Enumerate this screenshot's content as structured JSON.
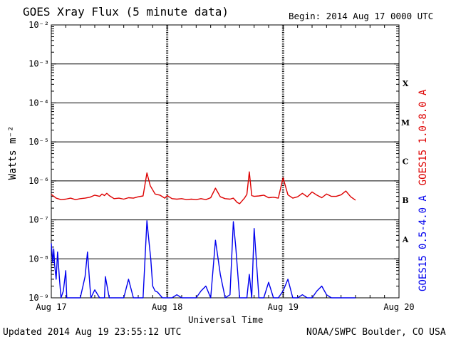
{
  "header": {
    "title": "GOES Xray Flux (5 minute data)",
    "begin": "Begin:  2014 Aug 17 0000 UTC"
  },
  "footer": {
    "updated": "Updated 2014 Aug 19 23:55:12 UTC",
    "credit": "NOAA/SWPC Boulder, CO USA"
  },
  "colors": {
    "long": "#dd0000",
    "short": "#0000ee",
    "axis": "#000000"
  },
  "chart_data": {
    "type": "line",
    "title": "GOES Xray Flux (5 minute data)",
    "xlabel": "Universal Time",
    "ylabel": "Watts m⁻²",
    "ylog": true,
    "ylim": [
      1e-09,
      0.01
    ],
    "yticks": [
      "10⁻²",
      "10⁻³",
      "10⁻⁴",
      "10⁻⁵",
      "10⁻⁶",
      "10⁻⁷",
      "10⁻⁸",
      "10⁻⁹"
    ],
    "xlim": [
      0,
      72
    ],
    "xticks": [
      {
        "x": 0,
        "label": "Aug 17"
      },
      {
        "x": 24,
        "label": "Aug 18"
      },
      {
        "x": 48,
        "label": "Aug 19"
      },
      {
        "x": 72,
        "label": "Aug 20"
      }
    ],
    "flare_classes": [
      "X",
      "M",
      "C",
      "B",
      "A"
    ],
    "grid": true,
    "series": [
      {
        "name": "GOES15 1.0-8.0 A",
        "color": "#dd0000",
        "x": [
          0,
          1,
          2,
          3,
          4,
          5,
          6,
          7,
          8,
          9,
          10,
          10.5,
          11,
          11.5,
          12,
          13,
          14,
          15,
          16,
          17,
          18,
          19,
          19.8,
          20.5,
          21.5,
          22.5,
          23.5,
          24,
          25,
          26,
          27,
          28,
          29,
          30,
          31,
          32,
          33,
          34,
          35,
          36,
          37,
          37.7,
          38.5,
          39,
          40,
          40.5,
          41,
          41.5,
          42,
          43,
          44,
          45,
          46,
          47,
          48,
          49,
          50,
          51,
          52,
          53,
          54,
          55,
          56,
          57,
          58,
          59,
          60,
          61,
          62,
          63
        ],
        "y": [
          4.5e-07,
          3.6e-07,
          3.3e-07,
          3.4e-07,
          3.6e-07,
          3.3e-07,
          3.5e-07,
          3.6e-07,
          3.8e-07,
          4.3e-07,
          4e-07,
          4.6e-07,
          4.2e-07,
          4.8e-07,
          4.2e-07,
          3.5e-07,
          3.6e-07,
          3.4e-07,
          3.7e-07,
          3.6e-07,
          3.9e-07,
          4.1e-07,
          1.6e-06,
          7.5e-07,
          4.6e-07,
          4.3e-07,
          3.6e-07,
          4.2e-07,
          3.5e-07,
          3.4e-07,
          3.5e-07,
          3.3e-07,
          3.4e-07,
          3.3e-07,
          3.5e-07,
          3.3e-07,
          3.7e-07,
          6.5e-07,
          3.9e-07,
          3.5e-07,
          3.4e-07,
          3.6e-07,
          2.8e-07,
          2.6e-07,
          3.6e-07,
          4.5e-07,
          1.7e-06,
          4.2e-07,
          4e-07,
          4.1e-07,
          4.3e-07,
          3.7e-07,
          3.8e-07,
          3.6e-07,
          1.2e-06,
          4.4e-07,
          3.6e-07,
          3.9e-07,
          4.8e-07,
          3.9e-07,
          5.2e-07,
          4.3e-07,
          3.7e-07,
          4.6e-07,
          4e-07,
          4e-07,
          4.4e-07,
          5.5e-07,
          3.9e-07,
          3.2e-07
        ]
      },
      {
        "name": "GOES15 0.5-4.0 A",
        "color": "#0000ee",
        "x": [
          0,
          0.3,
          0.5,
          0.7,
          1,
          1.3,
          1.7,
          2,
          2.5,
          3,
          3.2,
          4,
          5,
          6,
          7,
          7.5,
          8,
          8.2,
          9,
          10,
          11,
          11.2,
          12,
          13,
          14,
          15,
          16,
          17,
          18,
          19,
          19.8,
          20.2,
          20.6,
          21,
          21.5,
          22,
          23,
          24,
          25,
          26,
          27,
          28,
          29,
          30,
          31,
          32,
          33,
          34,
          35,
          36,
          37,
          37.7,
          38.2,
          39,
          40,
          40.5,
          41,
          41.5,
          42,
          43,
          44,
          45,
          46,
          47,
          48,
          49,
          50,
          51,
          52,
          53,
          54,
          55,
          56,
          57,
          58,
          59,
          60,
          61,
          62,
          63
        ],
        "y": [
          2.5e-08,
          8e-09,
          1.8e-08,
          7e-09,
          3e-09,
          1.5e-08,
          3e-09,
          1e-09,
          1.5e-09,
          5e-09,
          1e-09,
          1e-09,
          1e-09,
          1e-09,
          3.5e-09,
          1.5e-08,
          2e-09,
          1e-09,
          1.6e-09,
          1e-09,
          1e-09,
          3.5e-09,
          1e-09,
          1e-09,
          1e-09,
          1e-09,
          3e-09,
          1e-09,
          1e-09,
          1e-09,
          9.5e-08,
          3e-08,
          1e-08,
          2e-09,
          1.5e-09,
          1.4e-09,
          1e-09,
          1e-09,
          1e-09,
          1.2e-09,
          1e-09,
          1e-09,
          1e-09,
          1e-09,
          1.5e-09,
          2e-09,
          1e-09,
          3e-08,
          4e-09,
          1e-09,
          1.2e-09,
          9e-08,
          2e-08,
          1e-09,
          1e-09,
          1e-09,
          4e-09,
          1e-09,
          6e-08,
          1e-09,
          1e-09,
          2.5e-09,
          1e-09,
          1e-09,
          1.5e-09,
          3e-09,
          1e-09,
          1e-09,
          1.2e-09,
          1e-09,
          1e-09,
          1.5e-09,
          2e-09,
          1.2e-09,
          1e-09,
          1e-09,
          1e-09,
          1e-09,
          1e-09,
          1e-09
        ]
      }
    ]
  }
}
